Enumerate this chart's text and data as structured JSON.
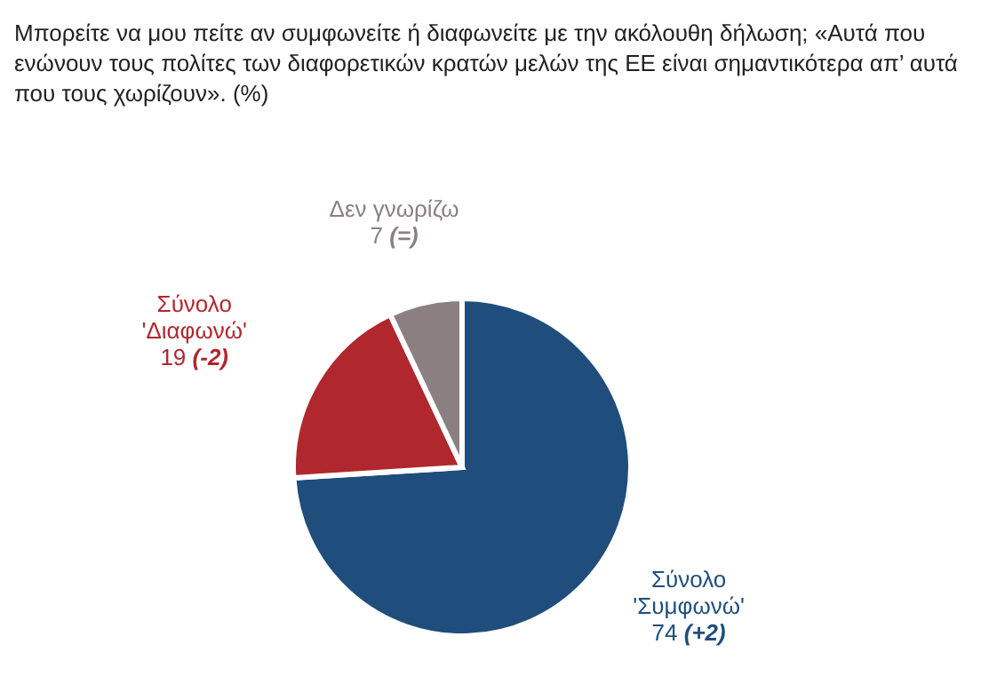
{
  "chart_data": {
    "type": "pie",
    "title": "Μπορείτε να μου πείτε αν συμφωνείτε ή διαφωνείτε με την ακόλουθη δήλωση; «Αυτά που ενώνουν τους πολίτες των διαφορετικών κρατών μελών της ΕΕ είναι σημαντικότερα απ’ αυτά που τους χωρίζουν». (%)",
    "categories": [
      "Σύνολο\n'Συμφωνώ'",
      "Σύνολο\n'Διαφωνώ'",
      "Δεν γνωρίζω"
    ],
    "values": [
      74,
      19,
      7
    ],
    "colors": [
      "#1f4e7d",
      "#b0282d",
      "#8c7f82"
    ],
    "value_labels": [
      "74 (+2)",
      "19 (-2)",
      "7 (=)"
    ],
    "legend": false
  }
}
